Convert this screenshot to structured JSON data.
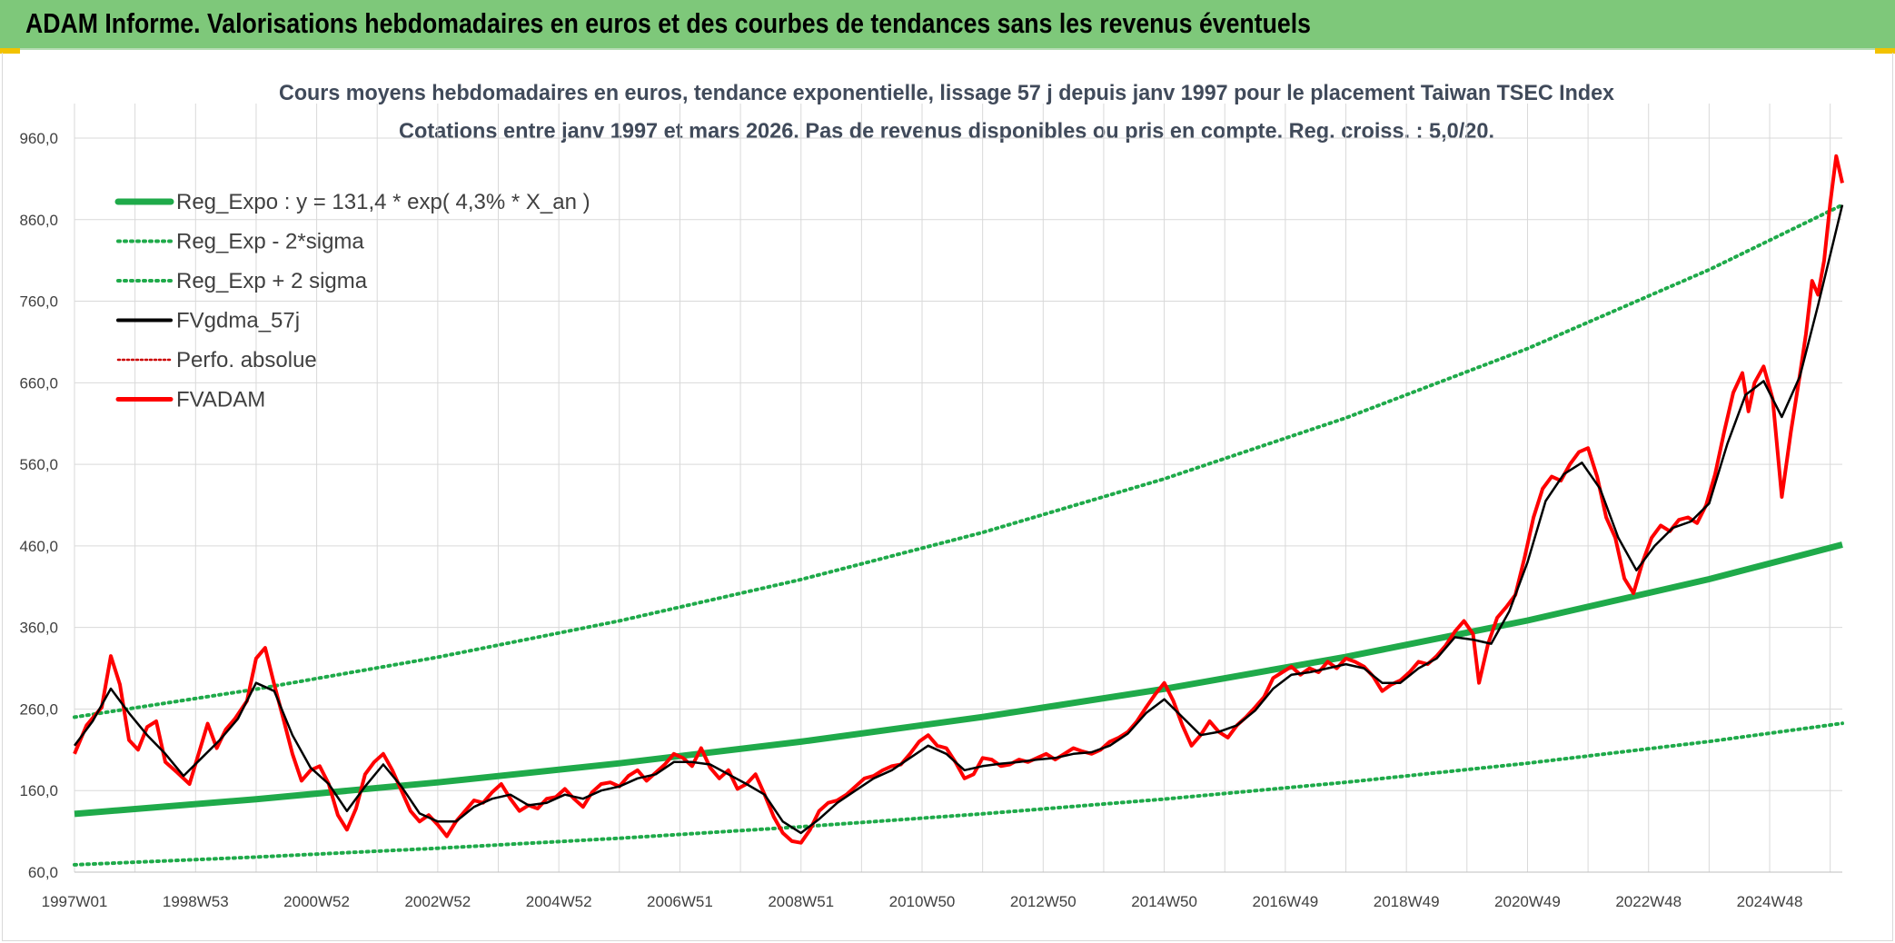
{
  "header": {
    "title": "ADAM Informe. Valorisations hebdomadaires en euros et des courbes de tendances sans les revenus éventuels",
    "background": "#7ec87a"
  },
  "colors": {
    "reg_expo": "#1faa4a",
    "bands": "#1faa4a",
    "fvgdma": "#000000",
    "fvadam": "#ff0000",
    "perfo": "#cc0000",
    "grid": "#d9d9d9"
  },
  "chart_data": {
    "type": "line",
    "title": [
      "Cours moyens hebdomadaires en euros, tendance exponentielle, lissage 57 j depuis janv 1997 pour le placement Taiwan TSEC Index",
      "Cotations entre janv 1997 et mars 2026. Pas de revenus disponibles ou pris en compte. Reg. croiss. : 5,0/20."
    ],
    "x_tick_labels": [
      "1997W01",
      "1998W53",
      "2000W52",
      "2002W52",
      "2004W52",
      "2006W51",
      "2008W51",
      "2010W50",
      "2012W50",
      "2014W50",
      "2016W49",
      "2018W49",
      "2020W49",
      "2022W48",
      "2024W48"
    ],
    "x_range_years": [
      1997.0,
      2026.2
    ],
    "y_tick_labels": [
      "60,0",
      "160,0",
      "260,0",
      "360,0",
      "460,0",
      "560,0",
      "660,0",
      "760,0",
      "860,0",
      "960,0"
    ],
    "ylim": [
      60,
      960
    ],
    "grid": true,
    "legend": {
      "position": "top-left",
      "entries": [
        "Reg_Expo : y = 131,4 * exp( 4,3% *  X_an )",
        "Reg_Exp - 2*sigma",
        "Reg_Exp + 2 sigma",
        "FVgdma_57j",
        "Perfo. absolue",
        "FVADAM"
      ]
    },
    "trend": {
      "name": "Reg_Expo",
      "formula": "131.4*exp(0.043*t)",
      "x_years": [
        1997.0,
        2000.0,
        2003.0,
        2006.0,
        2009.0,
        2012.0,
        2015.0,
        2018.0,
        2021.0,
        2024.0,
        2026.2
      ],
      "values": [
        131.4,
        149.4,
        170.0,
        193.4,
        220.0,
        250.3,
        284.7,
        323.9,
        368.5,
        419.2,
        461.5
      ]
    },
    "band_minus": {
      "name": "Reg_Exp - 2*sigma",
      "x_years": [
        1997.0,
        2000.0,
        2003.0,
        2006.0,
        2009.0,
        2012.0,
        2015.0,
        2018.0,
        2021.0,
        2024.0,
        2026.2
      ],
      "values": [
        69.0,
        78.5,
        89.3,
        101.6,
        115.6,
        131.5,
        149.6,
        170.2,
        193.6,
        220.2,
        242.5
      ]
    },
    "band_plus": {
      "name": "Reg_Exp + 2 sigma",
      "x_years": [
        1997.0,
        2000.0,
        2003.0,
        2006.0,
        2009.0,
        2012.0,
        2015.0,
        2018.0,
        2021.0,
        2024.0,
        2026.2
      ],
      "values": [
        250.0,
        284.3,
        323.5,
        368.1,
        418.8,
        476.5,
        542.2,
        616.9,
        701.9,
        798.6,
        878.0
      ]
    },
    "fvadam": {
      "name": "FVADAM",
      "points": [
        [
          1997.0,
          205
        ],
        [
          1997.2,
          240
        ],
        [
          1997.45,
          262
        ],
        [
          1997.6,
          325
        ],
        [
          1997.75,
          290
        ],
        [
          1997.9,
          222
        ],
        [
          1998.05,
          210
        ],
        [
          1998.2,
          238
        ],
        [
          1998.35,
          245
        ],
        [
          1998.5,
          195
        ],
        [
          1998.7,
          182
        ],
        [
          1998.9,
          168
        ],
        [
          1999.05,
          205
        ],
        [
          1999.2,
          242
        ],
        [
          1999.35,
          212
        ],
        [
          1999.5,
          235
        ],
        [
          1999.65,
          248
        ],
        [
          1999.85,
          270
        ],
        [
          2000.0,
          322
        ],
        [
          2000.15,
          335
        ],
        [
          2000.3,
          290
        ],
        [
          2000.45,
          248
        ],
        [
          2000.6,
          205
        ],
        [
          2000.75,
          172
        ],
        [
          2000.9,
          185
        ],
        [
          2001.05,
          190
        ],
        [
          2001.2,
          168
        ],
        [
          2001.35,
          130
        ],
        [
          2001.5,
          112
        ],
        [
          2001.65,
          138
        ],
        [
          2001.8,
          180
        ],
        [
          2001.95,
          195
        ],
        [
          2002.1,
          205
        ],
        [
          2002.25,
          185
        ],
        [
          2002.4,
          160
        ],
        [
          2002.55,
          135
        ],
        [
          2002.7,
          122
        ],
        [
          2002.85,
          130
        ],
        [
          2003.0,
          118
        ],
        [
          2003.15,
          104
        ],
        [
          2003.3,
          122
        ],
        [
          2003.45,
          135
        ],
        [
          2003.6,
          148
        ],
        [
          2003.75,
          145
        ],
        [
          2003.9,
          158
        ],
        [
          2004.05,
          168
        ],
        [
          2004.2,
          150
        ],
        [
          2004.35,
          135
        ],
        [
          2004.5,
          142
        ],
        [
          2004.65,
          138
        ],
        [
          2004.8,
          150
        ],
        [
          2004.95,
          152
        ],
        [
          2005.1,
          162
        ],
        [
          2005.25,
          150
        ],
        [
          2005.4,
          140
        ],
        [
          2005.55,
          158
        ],
        [
          2005.7,
          168
        ],
        [
          2005.85,
          170
        ],
        [
          2006.0,
          165
        ],
        [
          2006.15,
          178
        ],
        [
          2006.3,
          185
        ],
        [
          2006.45,
          172
        ],
        [
          2006.6,
          182
        ],
        [
          2006.75,
          192
        ],
        [
          2006.9,
          205
        ],
        [
          2007.05,
          200
        ],
        [
          2007.2,
          190
        ],
        [
          2007.35,
          212
        ],
        [
          2007.5,
          188
        ],
        [
          2007.65,
          175
        ],
        [
          2007.8,
          185
        ],
        [
          2007.95,
          162
        ],
        [
          2008.1,
          168
        ],
        [
          2008.25,
          180
        ],
        [
          2008.4,
          155
        ],
        [
          2008.55,
          128
        ],
        [
          2008.7,
          108
        ],
        [
          2008.85,
          98
        ],
        [
          2009.0,
          96
        ],
        [
          2009.15,
          112
        ],
        [
          2009.3,
          135
        ],
        [
          2009.45,
          145
        ],
        [
          2009.6,
          148
        ],
        [
          2009.75,
          155
        ],
        [
          2009.9,
          165
        ],
        [
          2010.05,
          175
        ],
        [
          2010.2,
          178
        ],
        [
          2010.35,
          185
        ],
        [
          2010.5,
          190
        ],
        [
          2010.65,
          192
        ],
        [
          2010.8,
          205
        ],
        [
          2010.95,
          220
        ],
        [
          2011.1,
          228
        ],
        [
          2011.25,
          215
        ],
        [
          2011.4,
          212
        ],
        [
          2011.55,
          195
        ],
        [
          2011.7,
          175
        ],
        [
          2011.85,
          180
        ],
        [
          2012.0,
          200
        ],
        [
          2012.15,
          198
        ],
        [
          2012.3,
          190
        ],
        [
          2012.45,
          192
        ],
        [
          2012.6,
          198
        ],
        [
          2012.75,
          195
        ],
        [
          2012.9,
          200
        ],
        [
          2013.05,
          205
        ],
        [
          2013.2,
          198
        ],
        [
          2013.35,
          205
        ],
        [
          2013.5,
          212
        ],
        [
          2013.65,
          208
        ],
        [
          2013.8,
          205
        ],
        [
          2013.95,
          210
        ],
        [
          2014.1,
          220
        ],
        [
          2014.25,
          225
        ],
        [
          2014.4,
          232
        ],
        [
          2014.55,
          245
        ],
        [
          2014.7,
          262
        ],
        [
          2014.85,
          278
        ],
        [
          2015.0,
          292
        ],
        [
          2015.15,
          270
        ],
        [
          2015.3,
          240
        ],
        [
          2015.45,
          215
        ],
        [
          2015.6,
          228
        ],
        [
          2015.75,
          245
        ],
        [
          2015.9,
          232
        ],
        [
          2016.05,
          225
        ],
        [
          2016.2,
          240
        ],
        [
          2016.35,
          250
        ],
        [
          2016.5,
          262
        ],
        [
          2016.65,
          275
        ],
        [
          2016.8,
          298
        ],
        [
          2016.95,
          305
        ],
        [
          2017.1,
          312
        ],
        [
          2017.25,
          302
        ],
        [
          2017.4,
          310
        ],
        [
          2017.55,
          305
        ],
        [
          2017.7,
          318
        ],
        [
          2017.85,
          310
        ],
        [
          2018.0,
          322
        ],
        [
          2018.15,
          318
        ],
        [
          2018.3,
          312
        ],
        [
          2018.45,
          300
        ],
        [
          2018.6,
          282
        ],
        [
          2018.75,
          290
        ],
        [
          2018.9,
          295
        ],
        [
          2019.05,
          305
        ],
        [
          2019.2,
          318
        ],
        [
          2019.35,
          315
        ],
        [
          2019.5,
          325
        ],
        [
          2019.65,
          338
        ],
        [
          2019.8,
          355
        ],
        [
          2019.95,
          368
        ],
        [
          2020.1,
          352
        ],
        [
          2020.2,
          292
        ],
        [
          2020.35,
          340
        ],
        [
          2020.5,
          372
        ],
        [
          2020.65,
          385
        ],
        [
          2020.8,
          400
        ],
        [
          2020.95,
          445
        ],
        [
          2021.1,
          495
        ],
        [
          2021.25,
          530
        ],
        [
          2021.4,
          545
        ],
        [
          2021.55,
          540
        ],
        [
          2021.7,
          560
        ],
        [
          2021.85,
          575
        ],
        [
          2022.0,
          580
        ],
        [
          2022.15,
          545
        ],
        [
          2022.3,
          495
        ],
        [
          2022.45,
          470
        ],
        [
          2022.6,
          420
        ],
        [
          2022.75,
          402
        ],
        [
          2022.9,
          440
        ],
        [
          2023.05,
          470
        ],
        [
          2023.2,
          485
        ],
        [
          2023.35,
          478
        ],
        [
          2023.5,
          492
        ],
        [
          2023.65,
          495
        ],
        [
          2023.8,
          488
        ],
        [
          2023.95,
          510
        ],
        [
          2024.1,
          548
        ],
        [
          2024.25,
          600
        ],
        [
          2024.4,
          648
        ],
        [
          2024.55,
          672
        ],
        [
          2024.65,
          625
        ],
        [
          2024.75,
          660
        ],
        [
          2024.9,
          680
        ],
        [
          2025.05,
          640
        ],
        [
          2025.2,
          520
        ],
        [
          2025.35,
          600
        ],
        [
          2025.5,
          670
        ],
        [
          2025.6,
          720
        ],
        [
          2025.7,
          785
        ],
        [
          2025.8,
          768
        ],
        [
          2025.9,
          810
        ],
        [
          2026.0,
          880
        ],
        [
          2026.1,
          938
        ],
        [
          2026.2,
          905
        ]
      ]
    },
    "fvgdma": {
      "name": "FVgdma_57j",
      "points": [
        [
          1997.0,
          215
        ],
        [
          1997.3,
          245
        ],
        [
          1997.6,
          285
        ],
        [
          1997.9,
          255
        ],
        [
          1998.2,
          228
        ],
        [
          1998.5,
          205
        ],
        [
          1998.8,
          178
        ],
        [
          1999.1,
          200
        ],
        [
          1999.4,
          222
        ],
        [
          1999.7,
          248
        ],
        [
          2000.0,
          292
        ],
        [
          2000.3,
          282
        ],
        [
          2000.6,
          228
        ],
        [
          2000.9,
          188
        ],
        [
          2001.2,
          168
        ],
        [
          2001.5,
          135
        ],
        [
          2001.8,
          165
        ],
        [
          2002.1,
          192
        ],
        [
          2002.4,
          165
        ],
        [
          2002.7,
          132
        ],
        [
          2003.0,
          122
        ],
        [
          2003.3,
          122
        ],
        [
          2003.6,
          140
        ],
        [
          2003.9,
          150
        ],
        [
          2004.2,
          155
        ],
        [
          2004.5,
          142
        ],
        [
          2004.8,
          145
        ],
        [
          2005.1,
          155
        ],
        [
          2005.4,
          150
        ],
        [
          2005.7,
          160
        ],
        [
          2006.0,
          165
        ],
        [
          2006.3,
          175
        ],
        [
          2006.6,
          180
        ],
        [
          2006.9,
          195
        ],
        [
          2007.2,
          195
        ],
        [
          2007.5,
          192
        ],
        [
          2007.8,
          180
        ],
        [
          2008.1,
          168
        ],
        [
          2008.4,
          155
        ],
        [
          2008.7,
          122
        ],
        [
          2009.0,
          108
        ],
        [
          2009.3,
          125
        ],
        [
          2009.6,
          145
        ],
        [
          2009.9,
          160
        ],
        [
          2010.2,
          175
        ],
        [
          2010.5,
          185
        ],
        [
          2010.8,
          200
        ],
        [
          2011.1,
          215
        ],
        [
          2011.4,
          205
        ],
        [
          2011.7,
          185
        ],
        [
          2012.0,
          190
        ],
        [
          2012.3,
          193
        ],
        [
          2012.6,
          195
        ],
        [
          2012.9,
          198
        ],
        [
          2013.2,
          200
        ],
        [
          2013.5,
          205
        ],
        [
          2013.8,
          207
        ],
        [
          2014.1,
          215
        ],
        [
          2014.4,
          230
        ],
        [
          2014.7,
          255
        ],
        [
          2015.0,
          272
        ],
        [
          2015.3,
          250
        ],
        [
          2015.6,
          228
        ],
        [
          2015.9,
          232
        ],
        [
          2016.2,
          240
        ],
        [
          2016.5,
          258
        ],
        [
          2016.8,
          285
        ],
        [
          2017.1,
          302
        ],
        [
          2017.4,
          305
        ],
        [
          2017.7,
          310
        ],
        [
          2018.0,
          315
        ],
        [
          2018.3,
          310
        ],
        [
          2018.6,
          292
        ],
        [
          2018.9,
          292
        ],
        [
          2019.2,
          310
        ],
        [
          2019.5,
          322
        ],
        [
          2019.8,
          348
        ],
        [
          2020.1,
          345
        ],
        [
          2020.4,
          340
        ],
        [
          2020.7,
          380
        ],
        [
          2021.0,
          440
        ],
        [
          2021.3,
          515
        ],
        [
          2021.6,
          548
        ],
        [
          2021.9,
          562
        ],
        [
          2022.2,
          530
        ],
        [
          2022.5,
          470
        ],
        [
          2022.8,
          430
        ],
        [
          2023.1,
          460
        ],
        [
          2023.4,
          482
        ],
        [
          2023.7,
          490
        ],
        [
          2024.0,
          512
        ],
        [
          2024.3,
          585
        ],
        [
          2024.6,
          645
        ],
        [
          2024.9,
          662
        ],
        [
          2025.2,
          618
        ],
        [
          2025.5,
          668
        ],
        [
          2025.8,
          755
        ],
        [
          2026.2,
          878
        ]
      ]
    }
  }
}
